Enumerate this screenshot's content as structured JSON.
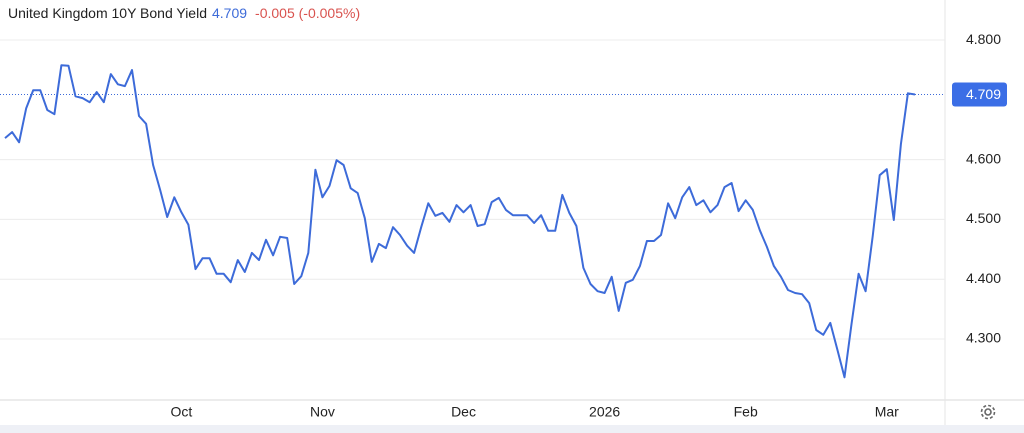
{
  "chart_data": {
    "type": "line",
    "title": "United Kingdom 10Y Bond Yield",
    "change": "-0.005 (-0.005%)",
    "categories": [
      null,
      null,
      null,
      null,
      null,
      null,
      null,
      null,
      null,
      null,
      null,
      null,
      null,
      null,
      null,
      null,
      null,
      null,
      null,
      null,
      null,
      null,
      null,
      null,
      null,
      "Oct",
      null,
      null,
      null,
      null,
      null,
      null,
      null,
      null,
      null,
      null,
      null,
      null,
      null,
      null,
      null,
      null,
      null,
      null,
      null,
      "Nov",
      null,
      null,
      null,
      null,
      null,
      null,
      null,
      null,
      null,
      null,
      null,
      null,
      null,
      null,
      null,
      null,
      null,
      null,
      null,
      "Dec",
      null,
      null,
      null,
      null,
      null,
      null,
      null,
      null,
      null,
      null,
      null,
      null,
      null,
      null,
      null,
      null,
      null,
      null,
      null,
      "2026",
      null,
      null,
      null,
      null,
      null,
      null,
      null,
      null,
      null,
      null,
      null,
      null,
      null,
      null,
      null,
      null,
      null,
      null,
      null,
      "Feb",
      null,
      null,
      null,
      null,
      null,
      null,
      null,
      null,
      null,
      null,
      null,
      null,
      null,
      null,
      null,
      null,
      null,
      null,
      null,
      "Mar",
      null,
      null,
      null,
      null
    ],
    "series": [
      {
        "name": "United Kingdom 10Y Bond Yield",
        "color": "#3d6bd9",
        "values": [
          4.636,
          4.646,
          4.629,
          4.686,
          4.716,
          4.716,
          4.683,
          4.676,
          4.758,
          4.757,
          4.706,
          4.703,
          4.696,
          4.713,
          4.696,
          4.743,
          4.726,
          4.723,
          4.75,
          4.673,
          4.66,
          4.591,
          4.549,
          4.504,
          4.537,
          4.512,
          4.491,
          4.417,
          4.435,
          4.435,
          4.409,
          4.409,
          4.395,
          4.432,
          4.412,
          4.444,
          4.432,
          4.466,
          4.44,
          4.471,
          4.469,
          4.392,
          4.405,
          4.444,
          4.583,
          4.537,
          4.556,
          4.599,
          4.591,
          4.552,
          4.544,
          4.502,
          4.429,
          4.459,
          4.452,
          4.487,
          4.474,
          4.456,
          4.444,
          4.487,
          4.527,
          4.506,
          4.511,
          4.496,
          4.524,
          4.512,
          4.524,
          4.489,
          4.492,
          4.529,
          4.536,
          4.516,
          4.507,
          4.507,
          4.507,
          4.494,
          4.507,
          4.481,
          4.481,
          4.541,
          4.511,
          4.489,
          4.419,
          4.392,
          4.38,
          4.377,
          4.404,
          4.347,
          4.394,
          4.399,
          4.422,
          4.464,
          4.464,
          4.474,
          4.527,
          4.502,
          4.537,
          4.554,
          4.524,
          4.532,
          4.512,
          4.524,
          4.554,
          4.561,
          4.514,
          4.532,
          4.516,
          4.482,
          4.454,
          4.422,
          4.404,
          4.382,
          4.377,
          4.375,
          4.36,
          4.315,
          4.307,
          4.327,
          4.282,
          4.236,
          4.325,
          4.409,
          4.38,
          4.472,
          4.574,
          4.584,
          4.499,
          4.626,
          4.711,
          4.709
        ]
      }
    ],
    "ylim": [
      4.198,
      4.867
    ],
    "yticks": [
      {
        "value": 4.3,
        "label": "4.300"
      },
      {
        "value": 4.4,
        "label": "4.400"
      },
      {
        "value": 4.5,
        "label": "4.500"
      },
      {
        "value": 4.6,
        "label": "4.600"
      },
      {
        "value": 4.8,
        "label": "4.800"
      }
    ],
    "grid": true,
    "change_color": "#d9534f",
    "last_label_color": "#3b6ee6"
  }
}
